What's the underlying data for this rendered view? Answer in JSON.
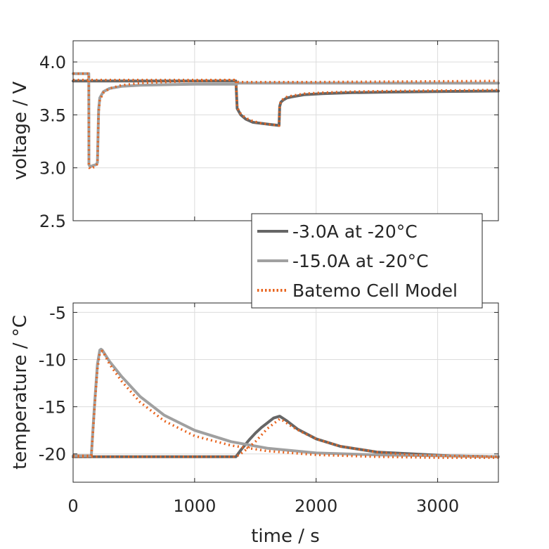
{
  "chart_data": [
    {
      "type": "line",
      "ylabel": "voltage / V",
      "xlim": [
        0,
        3500
      ],
      "ylim": [
        2.5,
        4.2
      ],
      "yticks": [
        2.5,
        3.0,
        3.5,
        4.0
      ],
      "ytick_labels": [
        "2.5",
        "3.0",
        "3.5",
        "4.0"
      ],
      "grid": true,
      "legend": {
        "placement": "bottom-right",
        "entries": [
          "-3.0A at -20°C",
          "-15.0A at -20°C",
          "Batemo Cell Model"
        ]
      },
      "series": [
        {
          "name": "-3.0A at -20°C",
          "color": "#666666",
          "style": "solid",
          "x": [
            0,
            1340,
            1350,
            1380,
            1420,
            1480,
            1550,
            1620,
            1695,
            1700,
            1710,
            1730,
            1760,
            1800,
            1900,
            2050,
            2300,
            2600,
            3000,
            3500
          ],
          "y": [
            3.82,
            3.82,
            3.56,
            3.5,
            3.46,
            3.43,
            3.42,
            3.41,
            3.4,
            3.58,
            3.62,
            3.64,
            3.66,
            3.67,
            3.69,
            3.7,
            3.71,
            3.715,
            3.72,
            3.725
          ]
        },
        {
          "name": "-15.0A at -20°C",
          "color": "#a0a0a0",
          "style": "solid",
          "x": [
            0,
            129,
            130,
            140,
            160,
            190,
            200,
            210,
            220,
            250,
            300,
            400,
            550,
            750,
            1000,
            1340,
            1360,
            1700,
            2000,
            3500
          ],
          "y": [
            3.89,
            3.89,
            3.03,
            3.01,
            3.02,
            3.03,
            3.05,
            3.55,
            3.66,
            3.72,
            3.75,
            3.77,
            3.78,
            3.785,
            3.79,
            3.79,
            3.8,
            3.8,
            3.8,
            3.8
          ]
        },
        {
          "name": "Batemo Cell Model",
          "color": "#e8641e",
          "style": "dotted",
          "x": [
            0,
            1340,
            1350,
            1380,
            1420,
            1480,
            1550,
            1620,
            1695,
            1700,
            1710,
            1730,
            1760,
            1800,
            1900,
            2050,
            2300,
            2600,
            3000,
            3500
          ],
          "y": [
            3.83,
            3.83,
            3.57,
            3.51,
            3.47,
            3.44,
            3.42,
            3.41,
            3.4,
            3.59,
            3.63,
            3.65,
            3.67,
            3.68,
            3.7,
            3.71,
            3.72,
            3.725,
            3.73,
            3.735
          ]
        },
        {
          "name": "Batemo Cell Model",
          "color": "#e8641e",
          "style": "dotted",
          "x": [
            0,
            129,
            130,
            140,
            160,
            190,
            200,
            210,
            220,
            250,
            300,
            400,
            550,
            750,
            1000,
            1340,
            1360,
            1700,
            2000,
            3500
          ],
          "y": [
            3.89,
            3.89,
            3.01,
            2.99,
            3.0,
            3.02,
            3.04,
            3.52,
            3.64,
            3.71,
            3.75,
            3.78,
            3.8,
            3.81,
            3.82,
            3.83,
            3.81,
            3.81,
            3.81,
            3.82
          ]
        }
      ]
    },
    {
      "type": "line",
      "xlabel": "time / s",
      "ylabel": "temperature / °C",
      "xlim": [
        0,
        3500
      ],
      "ylim": [
        -23,
        -4
      ],
      "xticks": [
        0,
        1000,
        2000,
        3000
      ],
      "xtick_labels": [
        "0",
        "1000",
        "2000",
        "3000"
      ],
      "yticks": [
        -20,
        -15,
        -10,
        -5
      ],
      "ytick_labels": [
        "-20",
        "-15",
        "-10",
        "-5"
      ],
      "grid": true,
      "series": [
        {
          "name": "-3.0A at -20°C",
          "color": "#666666",
          "style": "solid",
          "x": [
            0,
            1340,
            1380,
            1450,
            1500,
            1550,
            1600,
            1650,
            1700,
            1760,
            1850,
            2000,
            2200,
            2500,
            2800,
            3100,
            3500
          ],
          "y": [
            -20.3,
            -20.3,
            -19.6,
            -18.5,
            -17.8,
            -17.2,
            -16.7,
            -16.2,
            -16.0,
            -16.5,
            -17.4,
            -18.4,
            -19.2,
            -19.8,
            -20.0,
            -20.2,
            -20.3
          ]
        },
        {
          "name": "-15.0A at -20°C",
          "color": "#a0a0a0",
          "style": "solid",
          "x": [
            0,
            150,
            175,
            200,
            220,
            230,
            240,
            260,
            300,
            400,
            550,
            750,
            1000,
            1300,
            1600,
            2000,
            2500,
            3000,
            3500
          ],
          "y": [
            -20.2,
            -20.2,
            -15.0,
            -10.5,
            -9.0,
            -8.9,
            -9.0,
            -9.4,
            -10.2,
            -11.8,
            -13.9,
            -15.9,
            -17.5,
            -18.7,
            -19.4,
            -19.9,
            -20.1,
            -20.2,
            -20.3
          ]
        },
        {
          "name": "Batemo Cell Model",
          "color": "#e8641e",
          "style": "dotted",
          "x": [
            0,
            1340,
            1400,
            1500,
            1600,
            1700,
            1720,
            1800,
            1900,
            2000,
            2200,
            2500,
            2800,
            3100,
            3500
          ],
          "y": [
            -20.3,
            -20.3,
            -19.8,
            -18.7,
            -17.3,
            -16.3,
            -16.4,
            -17.1,
            -17.8,
            -18.4,
            -19.2,
            -19.8,
            -20.1,
            -20.2,
            -20.3
          ]
        },
        {
          "name": "Batemo Cell Model",
          "color": "#e8641e",
          "style": "dotted",
          "x": [
            0,
            150,
            180,
            200,
            220,
            240,
            260,
            300,
            400,
            550,
            750,
            1000,
            1300,
            1600,
            2000,
            2500,
            3000,
            3500
          ],
          "y": [
            -20.2,
            -20.2,
            -14.5,
            -11.0,
            -9.3,
            -9.1,
            -9.5,
            -10.5,
            -12.3,
            -14.5,
            -16.5,
            -18.1,
            -19.1,
            -19.7,
            -20.1,
            -20.3,
            -20.4,
            -20.4
          ]
        }
      ]
    }
  ]
}
